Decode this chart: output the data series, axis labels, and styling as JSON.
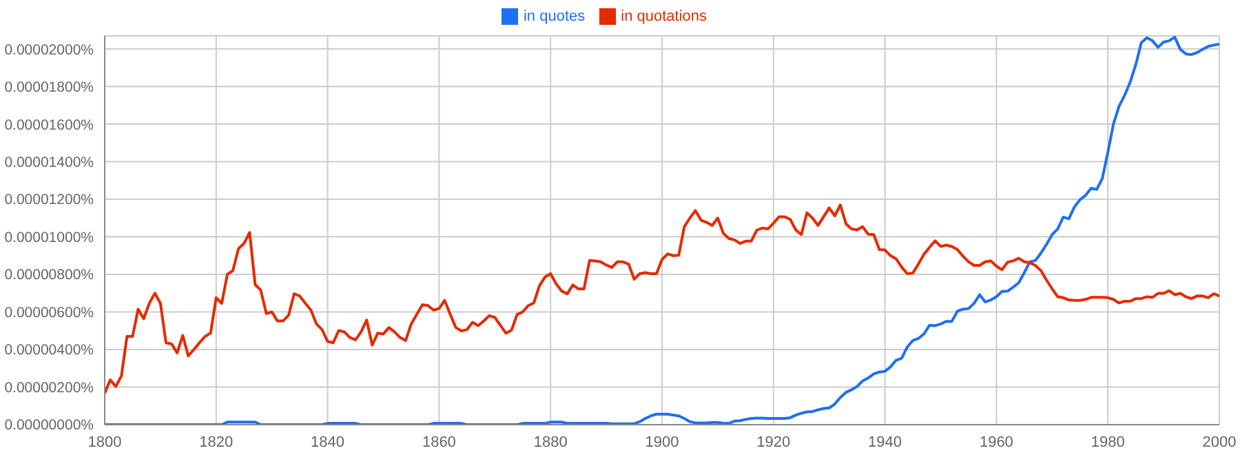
{
  "chart_data": {
    "type": "line",
    "x": [
      1800,
      1801,
      1802,
      1803,
      1804,
      1805,
      1806,
      1807,
      1808,
      1809,
      1810,
      1811,
      1812,
      1813,
      1814,
      1815,
      1816,
      1817,
      1818,
      1819,
      1820,
      1821,
      1822,
      1823,
      1824,
      1825,
      1826,
      1827,
      1828,
      1829,
      1830,
      1831,
      1832,
      1833,
      1834,
      1835,
      1836,
      1837,
      1838,
      1839,
      1840,
      1841,
      1842,
      1843,
      1844,
      1845,
      1846,
      1847,
      1848,
      1849,
      1850,
      1851,
      1852,
      1853,
      1854,
      1855,
      1856,
      1857,
      1858,
      1859,
      1860,
      1861,
      1862,
      1863,
      1864,
      1865,
      1866,
      1867,
      1868,
      1869,
      1870,
      1871,
      1872,
      1873,
      1874,
      1875,
      1876,
      1877,
      1878,
      1879,
      1880,
      1881,
      1882,
      1883,
      1884,
      1885,
      1886,
      1887,
      1888,
      1889,
      1890,
      1891,
      1892,
      1893,
      1894,
      1895,
      1896,
      1897,
      1898,
      1899,
      1900,
      1901,
      1902,
      1903,
      1904,
      1905,
      1906,
      1907,
      1908,
      1909,
      1910,
      1911,
      1912,
      1913,
      1914,
      1915,
      1916,
      1917,
      1918,
      1919,
      1920,
      1921,
      1922,
      1923,
      1924,
      1925,
      1926,
      1927,
      1928,
      1929,
      1930,
      1931,
      1932,
      1933,
      1934,
      1935,
      1936,
      1937,
      1938,
      1939,
      1940,
      1941,
      1942,
      1943,
      1944,
      1945,
      1946,
      1947,
      1948,
      1949,
      1950,
      1951,
      1952,
      1953,
      1954,
      1955,
      1956,
      1957,
      1958,
      1959,
      1960,
      1961,
      1962,
      1963,
      1964,
      1965,
      1966,
      1967,
      1968,
      1969,
      1970,
      1971,
      1972,
      1973,
      1974,
      1975,
      1976,
      1977,
      1978,
      1979,
      1980,
      1981,
      1982,
      1983,
      1984,
      1985,
      1986,
      1987,
      1988,
      1989,
      1990,
      1991,
      1992,
      1993,
      1994,
      1995,
      1996,
      1997,
      1998,
      1999,
      2000
    ],
    "series": [
      {
        "name": "in quotes",
        "color": "#1f6ff2",
        "values": [
          0,
          0,
          0,
          0,
          0,
          0,
          0,
          0,
          0,
          0,
          0,
          0,
          0,
          0,
          0,
          0,
          0,
          0,
          0,
          0,
          0,
          0,
          1.4e-07,
          1.4e-07,
          1.4e-07,
          1.4e-07,
          1.4e-07,
          1.4e-07,
          0,
          0,
          0,
          0,
          0,
          0,
          0,
          0,
          0,
          0,
          0,
          0,
          7e-08,
          7e-08,
          7e-08,
          7e-08,
          7e-08,
          7e-08,
          0,
          0,
          0,
          0,
          0,
          0,
          0,
          0,
          0,
          0,
          0,
          0,
          0,
          7e-08,
          7e-08,
          7e-08,
          7e-08,
          7e-08,
          7e-08,
          0,
          0,
          0,
          0,
          0,
          0,
          0,
          0,
          0,
          0,
          7e-08,
          7e-08,
          7e-08,
          7e-08,
          7e-08,
          1.4e-07,
          1.4e-07,
          1.4e-07,
          7e-08,
          7e-08,
          7e-08,
          7e-08,
          7e-08,
          7e-08,
          7e-08,
          7e-08,
          5e-08,
          5e-08,
          5e-08,
          5e-08,
          5e-08,
          1.6e-07,
          3.3e-07,
          4.7e-07,
          5.6e-07,
          5.6e-07,
          5.6e-07,
          5.1e-07,
          4.7e-07,
          3.3e-07,
          1.6e-07,
          9e-08,
          9e-08,
          9e-08,
          1.2e-07,
          1.2e-07,
          7e-08,
          7e-08,
          1.9e-07,
          2.1e-07,
          2.8e-07,
          3.3e-07,
          3.5e-07,
          3.5e-07,
          3.3e-07,
          3.3e-07,
          3.3e-07,
          3.3e-07,
          3.7e-07,
          5.1e-07,
          6.1e-07,
          6.8e-07,
          7e-07,
          7.9e-07,
          8.6e-07,
          8.9e-07,
          1.1e-06,
          1.45e-06,
          1.72e-06,
          1.86e-06,
          2.03e-06,
          2.33e-06,
          2.49e-06,
          2.7e-06,
          2.8e-06,
          2.84e-06,
          3.08e-06,
          3.43e-06,
          3.54e-06,
          4.13e-06,
          4.48e-06,
          4.59e-06,
          4.83e-06,
          5.29e-06,
          5.27e-06,
          5.36e-06,
          5.5e-06,
          5.5e-06,
          6.04e-06,
          6.15e-06,
          6.18e-06,
          6.46e-06,
          6.92e-06,
          6.53e-06,
          6.64e-06,
          6.81e-06,
          7.09e-06,
          7.11e-06,
          7.32e-06,
          7.55e-06,
          8.09e-06,
          8.67e-06,
          8.74e-06,
          9.14e-06,
          9.6e-06,
          1.012e-05,
          1.042e-05,
          1.105e-05,
          1.096e-05,
          1.159e-05,
          1.198e-05,
          1.221e-05,
          1.259e-05,
          1.252e-05,
          1.31e-05,
          1.45e-05,
          1.601e-05,
          1.695e-05,
          1.753e-05,
          1.823e-05,
          1.916e-05,
          2.033e-05,
          2.06e-05,
          2.044e-05,
          2.009e-05,
          2.037e-05,
          2.044e-05,
          2.063e-05,
          1.998e-05,
          1.974e-05,
          1.97e-05,
          1.981e-05,
          1.998e-05,
          2.014e-05,
          2.021e-05,
          2.026e-05
        ]
      },
      {
        "name": "in quotations",
        "color": "#e52a00",
        "values": [
          1.68e-06,
          2.38e-06,
          2.03e-06,
          2.6e-06,
          4.7e-06,
          4.7e-06,
          6.15e-06,
          5.64e-06,
          6.46e-06,
          7e-06,
          6.46e-06,
          4.36e-06,
          4.3e-06,
          3.82e-06,
          4.75e-06,
          3.66e-06,
          4e-06,
          4.36e-06,
          4.7e-06,
          4.87e-06,
          6.76e-06,
          6.46e-06,
          8e-06,
          8.2e-06,
          9.37e-06,
          9.65e-06,
          1.023e-05,
          7.46e-06,
          7.16e-06,
          5.92e-06,
          6e-06,
          5.52e-06,
          5.52e-06,
          5.83e-06,
          6.97e-06,
          6.85e-06,
          6.46e-06,
          6.1e-06,
          5.36e-06,
          5.06e-06,
          4.43e-06,
          4.36e-06,
          5.01e-06,
          4.94e-06,
          4.64e-06,
          4.52e-06,
          4.94e-06,
          5.57e-06,
          4.24e-06,
          4.87e-06,
          4.83e-06,
          5.17e-06,
          4.94e-06,
          4.64e-06,
          4.48e-06,
          5.36e-06,
          5.87e-06,
          6.39e-06,
          6.34e-06,
          6.1e-06,
          6.18e-06,
          6.62e-06,
          5.87e-06,
          5.17e-06,
          4.99e-06,
          5.06e-06,
          5.45e-06,
          5.27e-06,
          5.52e-06,
          5.8e-06,
          5.71e-06,
          5.29e-06,
          4.87e-06,
          5.03e-06,
          5.87e-06,
          6e-06,
          6.34e-06,
          6.48e-06,
          7.39e-06,
          7.86e-06,
          8.04e-06,
          7.5e-06,
          7.11e-06,
          6.97e-06,
          7.44e-06,
          7.23e-06,
          7.23e-06,
          8.74e-06,
          8.72e-06,
          8.67e-06,
          8.5e-06,
          8.37e-06,
          8.67e-06,
          8.67e-06,
          8.55e-06,
          7.74e-06,
          8.04e-06,
          8.09e-06,
          8.04e-06,
          8.04e-06,
          8.79e-06,
          9.09e-06,
          9e-06,
          9.02e-06,
          1.054e-05,
          1.1e-05,
          1.14e-05,
          1.089e-05,
          1.077e-05,
          1.061e-05,
          1.1e-05,
          1.019e-05,
          9.91e-06,
          9.84e-06,
          9.65e-06,
          9.77e-06,
          9.77e-06,
          1.035e-05,
          1.047e-05,
          1.042e-05,
          1.072e-05,
          1.107e-05,
          1.107e-05,
          1.093e-05,
          1.037e-05,
          1.012e-05,
          1.128e-05,
          1.1e-05,
          1.061e-05,
          1.107e-05,
          1.154e-05,
          1.112e-05,
          1.17e-05,
          1.07e-05,
          1.042e-05,
          1.037e-05,
          1.054e-05,
          1.014e-05,
          1.012e-05,
          9.32e-06,
          9.3e-06,
          9e-06,
          8.83e-06,
          8.39e-06,
          8.04e-06,
          8.07e-06,
          8.55e-06,
          9.07e-06,
          9.44e-06,
          9.79e-06,
          9.49e-06,
          9.56e-06,
          9.49e-06,
          9.32e-06,
          8.97e-06,
          8.67e-06,
          8.48e-06,
          8.48e-06,
          8.67e-06,
          8.72e-06,
          8.44e-06,
          8.25e-06,
          8.65e-06,
          8.72e-06,
          8.86e-06,
          8.67e-06,
          8.62e-06,
          8.48e-06,
          8.2e-06,
          7.69e-06,
          7.23e-06,
          6.81e-06,
          6.76e-06,
          6.64e-06,
          6.62e-06,
          6.62e-06,
          6.67e-06,
          6.78e-06,
          6.78e-06,
          6.78e-06,
          6.76e-06,
          6.67e-06,
          6.48e-06,
          6.57e-06,
          6.57e-06,
          6.71e-06,
          6.71e-06,
          6.81e-06,
          6.78e-06,
          6.99e-06,
          6.99e-06,
          7.13e-06,
          6.92e-06,
          6.99e-06,
          6.81e-06,
          6.71e-06,
          6.85e-06,
          6.85e-06,
          6.76e-06,
          6.97e-06,
          6.85e-06
        ]
      }
    ],
    "xlim": [
      1800,
      2000
    ],
    "xticks": [
      1800,
      1820,
      1840,
      1860,
      1880,
      1900,
      1920,
      1940,
      1960,
      1980,
      2000
    ],
    "ylim": [
      0,
      2.07e-05
    ],
    "yticks": [
      {
        "value": 0,
        "label": "0.00000000%"
      },
      {
        "value": 2e-06,
        "label": "0.00000200%"
      },
      {
        "value": 4e-06,
        "label": "0.00000400%"
      },
      {
        "value": 6e-06,
        "label": "0.00000600%"
      },
      {
        "value": 8e-06,
        "label": "0.00000800%"
      },
      {
        "value": 1e-05,
        "label": "0.00001000%"
      },
      {
        "value": 1.2e-05,
        "label": "0.00001200%"
      },
      {
        "value": 1.4e-05,
        "label": "0.00001400%"
      },
      {
        "value": 1.6e-05,
        "label": "0.00001600%"
      },
      {
        "value": 1.8e-05,
        "label": "0.00001800%"
      },
      {
        "value": 2e-05,
        "label": "0.00002000%"
      }
    ],
    "grid": true,
    "legend": "top",
    "marker": "none",
    "line_style": "solid"
  }
}
